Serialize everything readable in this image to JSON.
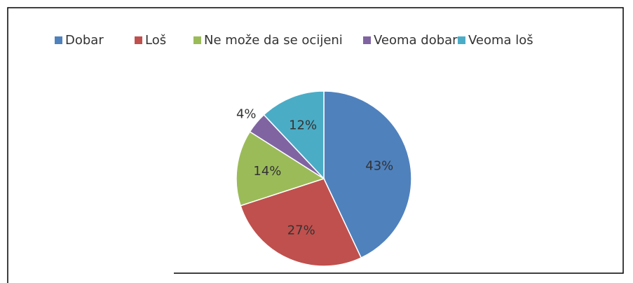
{
  "chart_data": {
    "type": "pie",
    "categories": [
      "Dobar",
      "Loš",
      "Ne može da se ocijeni",
      "Veoma dobar",
      "Veoma loš"
    ],
    "values": [
      43,
      27,
      14,
      4,
      12
    ],
    "value_labels": [
      "43%",
      "27%",
      "14%",
      "4%",
      "12%"
    ],
    "colors": [
      "#4f81bd",
      "#c0504d",
      "#9bbb59",
      "#8064a2",
      "#4bacc6"
    ],
    "legend": "top"
  }
}
